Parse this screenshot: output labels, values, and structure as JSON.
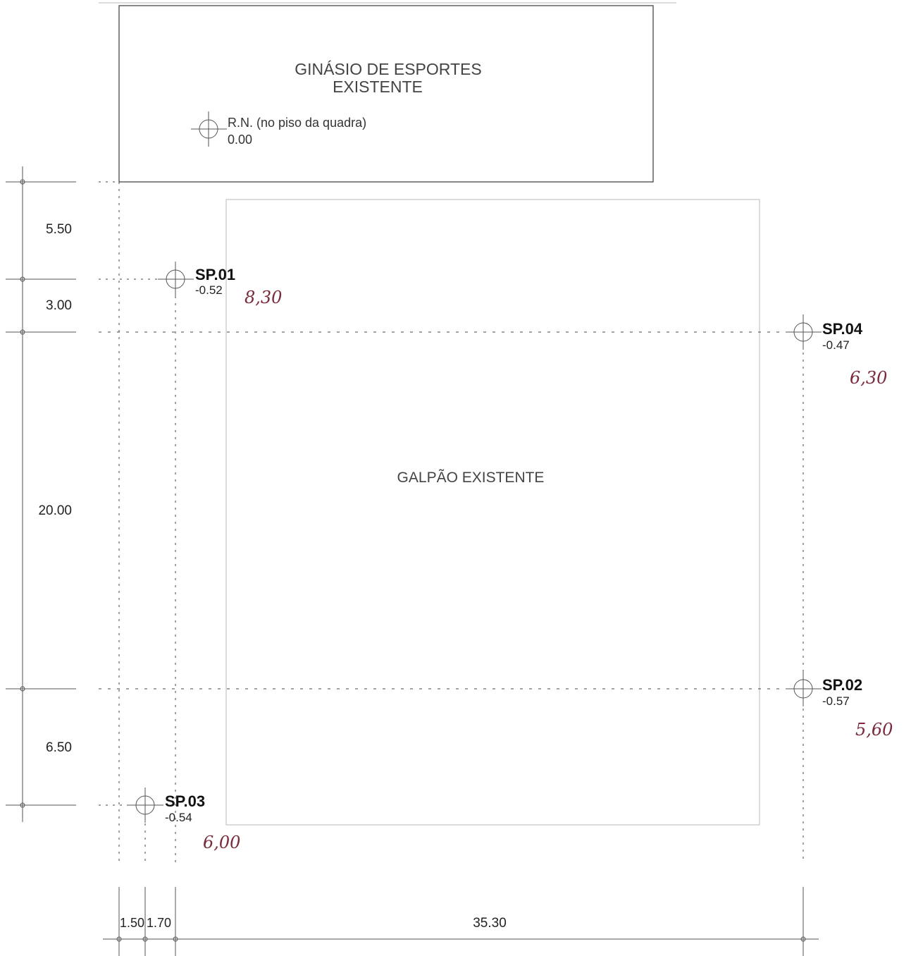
{
  "buildings": {
    "gym_line1": "GINÁSIO DE ESPORTES",
    "gym_line2": "EXISTENTE",
    "warehouse": "GALPÃO EXISTENTE"
  },
  "reference": {
    "label": "R.N. (no piso da quadra)",
    "value": "0.00"
  },
  "points": [
    {
      "name": "SP.01",
      "level": "-0.52",
      "depth": "8,30"
    },
    {
      "name": "SP.04",
      "level": "-0.47",
      "depth": "6,30"
    },
    {
      "name": "SP.02",
      "level": "-0.57",
      "depth": "5,60"
    },
    {
      "name": "SP.03",
      "level": "-0.54",
      "depth": "6,00"
    }
  ],
  "dimensions": {
    "vertical": [
      "5.50",
      "3.00",
      "20.00",
      "6.50"
    ],
    "horizontal": [
      "1.50",
      "1.70",
      "35.30"
    ]
  }
}
